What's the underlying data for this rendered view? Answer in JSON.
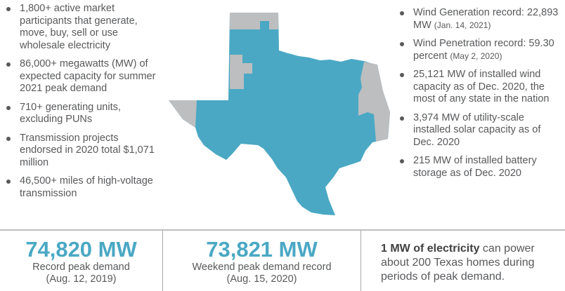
{
  "left_facts": [
    "1,800+ active market participants that generate, move, buy, sell or use wholesale electricity",
    "86,000+ megawatts (MW) of expected capacity for summer 2021 peak demand",
    "710+ generating units, excluding PUNs",
    "Transmission projects endorsed in 2020 total $1,071 million",
    "46,500+ miles of high-voltage transmission"
  ],
  "right_facts": [
    {
      "text": "Wind Generation record: 22,893 MW",
      "note": "(Jan. 14, 2021)"
    },
    {
      "text": "Wind Penetration record: 59.30 percent",
      "note": "(May 2, 2020)"
    },
    {
      "text": "25,121 MW of installed wind capacity as of Dec. 2020, the most of any state in the nation",
      "note": ""
    },
    {
      "text": "3,974 MW of utility-scale installed solar capacity as of Dec. 2020",
      "note": ""
    },
    {
      "text": "215 MW of installed battery storage as of Dec. 2020",
      "note": ""
    }
  ],
  "stats": [
    {
      "value": "74,820 MW",
      "label": "Record peak demand",
      "date": "(Aug. 12, 2019)"
    },
    {
      "value": "73,821 MW",
      "label": "Weekend peak demand record",
      "date": "(Aug. 15, 2020)"
    }
  ],
  "homes": {
    "bold": "1 MW of electricity",
    "rest": " can power about 200 Texas homes during periods of peak demand."
  },
  "colors": {
    "accent": "#4aa8c4",
    "gray": "#bcbec0",
    "text": "#58595b"
  }
}
